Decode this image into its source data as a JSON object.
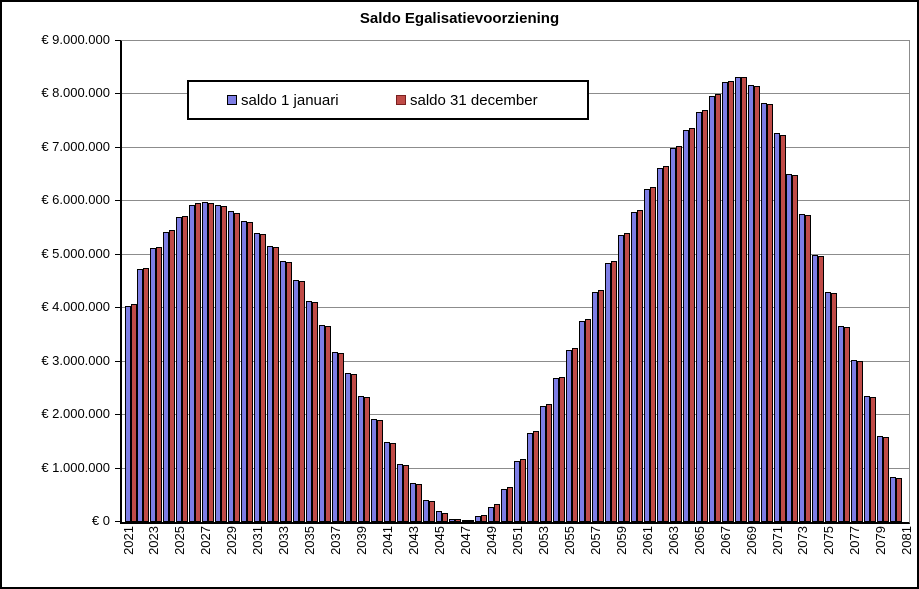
{
  "chart": {
    "title": "Saldo Egalisatievoorziening",
    "legend": [
      {
        "label": "saldo 1 januari",
        "color": "#7d7de4",
        "border": "#000000"
      },
      {
        "label": "saldo 31 december",
        "color": "#bf4b47",
        "border": "#7a2020"
      }
    ]
  },
  "chart_data": {
    "type": "bar",
    "title": "Saldo Egalisatievoorziening",
    "currency": "EUR",
    "x": [
      2021,
      2022,
      2023,
      2024,
      2025,
      2026,
      2027,
      2028,
      2029,
      2030,
      2031,
      2032,
      2033,
      2034,
      2035,
      2036,
      2037,
      2038,
      2039,
      2040,
      2041,
      2042,
      2043,
      2044,
      2045,
      2046,
      2047,
      2048,
      2049,
      2050,
      2051,
      2052,
      2053,
      2054,
      2055,
      2056,
      2057,
      2058,
      2059,
      2060,
      2061,
      2062,
      2063,
      2064,
      2065,
      2066,
      2067,
      2068,
      2069,
      2070,
      2071,
      2072,
      2073,
      2074,
      2075,
      2076,
      2077,
      2078,
      2079,
      2080
    ],
    "series": [
      {
        "name": "saldo 1 januari",
        "color": "#7d7de4",
        "values": [
          4050000,
          4730000,
          5120000,
          5430000,
          5710000,
          5940000,
          5980000,
          5930000,
          5810000,
          5640000,
          5410000,
          5170000,
          4880000,
          4530000,
          4140000,
          3690000,
          3190000,
          2780000,
          2360000,
          1920000,
          1500000,
          1080000,
          730000,
          420000,
          200000,
          60000,
          20000,
          110000,
          290000,
          620000,
          1140000,
          1670000,
          2170000,
          2690000,
          3220000,
          3770000,
          4310000,
          4850000,
          5370000,
          5800000,
          6240000,
          6630000,
          7000000,
          7340000,
          7680000,
          7980000,
          8240000,
          8330000,
          8180000,
          7840000,
          7270000,
          6510000,
          5770000,
          5000000,
          4300000,
          3660000,
          3030000,
          2360000,
          1610000,
          850000
        ]
      },
      {
        "name": "saldo 31 december",
        "color": "#bf4b47",
        "values": [
          4080000,
          4760000,
          5150000,
          5460000,
          5730000,
          5960000,
          5970000,
          5920000,
          5790000,
          5620000,
          5390000,
          5150000,
          4860000,
          4510000,
          4120000,
          3670000,
          3170000,
          2760000,
          2340000,
          1900000,
          1480000,
          1060000,
          710000,
          400000,
          160000,
          50000,
          30000,
          140000,
          330000,
          650000,
          1170000,
          1700000,
          2200000,
          2720000,
          3250000,
          3800000,
          4340000,
          4880000,
          5400000,
          5830000,
          6270000,
          6660000,
          7030000,
          7370000,
          7700000,
          8000000,
          8260000,
          8320000,
          8160000,
          7820000,
          7250000,
          6490000,
          5750000,
          4980000,
          4280000,
          3640000,
          3010000,
          2340000,
          1590000,
          830000
        ]
      }
    ],
    "ylim": [
      0,
      9000000
    ],
    "y_tick_step": 1000000,
    "y_tick_labels": [
      "€ 0",
      "€ 1.000.000",
      "€ 2.000.000",
      "€ 3.000.000",
      "€ 4.000.000",
      "€ 5.000.000",
      "€ 6.000.000",
      "€ 7.000.000",
      "€ 8.000.000",
      "€ 9.000.000"
    ],
    "x_tick_labels": [
      "2021",
      "2023",
      "2025",
      "2027",
      "2029",
      "2031",
      "2033",
      "2035",
      "2037",
      "2039",
      "2041",
      "2043",
      "2045",
      "2047",
      "2049",
      "2051",
      "2053",
      "2055",
      "2057",
      "2059",
      "2061",
      "2063",
      "2065",
      "2067",
      "2069",
      "2071",
      "2073",
      "2075",
      "2077",
      "2079",
      "2081"
    ],
    "grid": "horizontal",
    "legend_position": "top-inside"
  }
}
